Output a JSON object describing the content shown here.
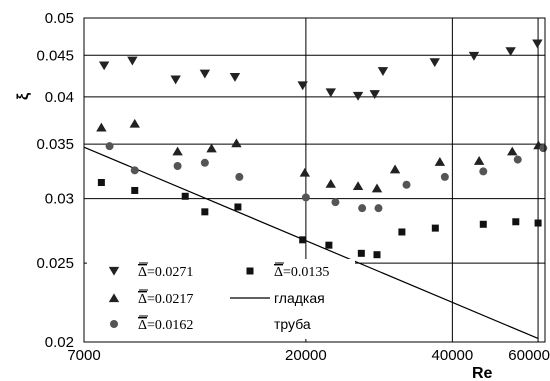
{
  "chart_data": {
    "type": "scatter",
    "title": "",
    "xlabel": "Re",
    "ylabel": "ξ",
    "x_scale": "log",
    "y_scale": "log",
    "xlim": [
      7000,
      62000
    ],
    "ylim": [
      0.02,
      0.05
    ],
    "x_ticks": [
      {
        "value": 7000,
        "label": "7000"
      },
      {
        "value": 20000,
        "label": "20000"
      },
      {
        "value": 40000,
        "label": "40000"
      },
      {
        "value": 60000,
        "label": "60000"
      }
    ],
    "y_ticks": [
      {
        "value": 0.02,
        "label": "0.02"
      },
      {
        "value": 0.025,
        "label": "0.025"
      },
      {
        "value": 0.03,
        "label": "0.03"
      },
      {
        "value": 0.035,
        "label": "0.035"
      },
      {
        "value": 0.04,
        "label": "0.04"
      },
      {
        "value": 0.045,
        "label": "0.045"
      },
      {
        "value": 0.05,
        "label": "0.05"
      }
    ],
    "grid": true,
    "legend_position": "bottom-left",
    "series": [
      {
        "name": "Δ=0.0271",
        "marker": "triangle-down",
        "points": [
          [
            7700,
            0.0437
          ],
          [
            8800,
            0.0443
          ],
          [
            10800,
            0.042
          ],
          [
            12400,
            0.0427
          ],
          [
            14300,
            0.0423
          ],
          [
            19700,
            0.0413
          ],
          [
            22500,
            0.0405
          ],
          [
            25600,
            0.0401
          ],
          [
            27700,
            0.0403
          ],
          [
            28800,
            0.043
          ],
          [
            36800,
            0.0441
          ],
          [
            44300,
            0.0449
          ],
          [
            52700,
            0.0455
          ],
          [
            59800,
            0.0465
          ]
        ]
      },
      {
        "name": "Δ=0.0217",
        "marker": "triangle-up",
        "points": [
          [
            7600,
            0.0367
          ],
          [
            8900,
            0.0371
          ],
          [
            10900,
            0.0343
          ],
          [
            12800,
            0.0346
          ],
          [
            14400,
            0.0351
          ],
          [
            19900,
            0.0323
          ],
          [
            22500,
            0.0313
          ],
          [
            25600,
            0.0311
          ],
          [
            28000,
            0.0309
          ],
          [
            30500,
            0.0326
          ],
          [
            37700,
            0.0333
          ],
          [
            45400,
            0.0334
          ],
          [
            53100,
            0.0343
          ],
          [
            60100,
            0.0349
          ]
        ]
      },
      {
        "name": "Δ=0.0162",
        "marker": "circle",
        "points": [
          [
            7900,
            0.0348
          ],
          [
            8900,
            0.0325
          ],
          [
            10900,
            0.0329
          ],
          [
            12400,
            0.0332
          ],
          [
            14600,
            0.0319
          ],
          [
            20000,
            0.0301
          ],
          [
            23000,
            0.0297
          ],
          [
            26100,
            0.0292
          ],
          [
            28200,
            0.0292
          ],
          [
            32200,
            0.0312
          ],
          [
            38600,
            0.0319
          ],
          [
            46300,
            0.0324
          ],
          [
            54500,
            0.0335
          ],
          [
            61500,
            0.0346
          ]
        ]
      },
      {
        "name": "Δ=0.0135",
        "marker": "square",
        "points": [
          [
            7600,
            0.0314
          ],
          [
            8900,
            0.0307
          ],
          [
            11300,
            0.0302
          ],
          [
            12400,
            0.0289
          ],
          [
            14500,
            0.0293
          ],
          [
            19700,
            0.0267
          ],
          [
            22300,
            0.0263
          ],
          [
            26000,
            0.0257
          ],
          [
            28000,
            0.0256
          ],
          [
            31500,
            0.0273
          ],
          [
            36900,
            0.0276
          ],
          [
            46300,
            0.0279
          ],
          [
            54000,
            0.0281
          ],
          [
            60000,
            0.028
          ]
        ]
      }
    ],
    "lines": [
      {
        "name": "гладкая труба",
        "points": [
          [
            7000,
            0.0347
          ],
          [
            60000,
            0.0202
          ]
        ]
      }
    ],
    "legend": {
      "col1": [
        {
          "prefix": "Δ",
          "value": "=0.0271",
          "marker": "triangle-down"
        },
        {
          "prefix": "Δ",
          "value": "=0.0217",
          "marker": "triangle-up"
        },
        {
          "prefix": "Δ",
          "value": "=0.0162",
          "marker": "circle"
        }
      ],
      "col2": [
        {
          "prefix": "Δ",
          "value": "=0.0135",
          "marker": "square"
        },
        {
          "text": "гладкая",
          "marker": "line"
        },
        {
          "text": "труба",
          "marker": "none"
        }
      ]
    }
  }
}
